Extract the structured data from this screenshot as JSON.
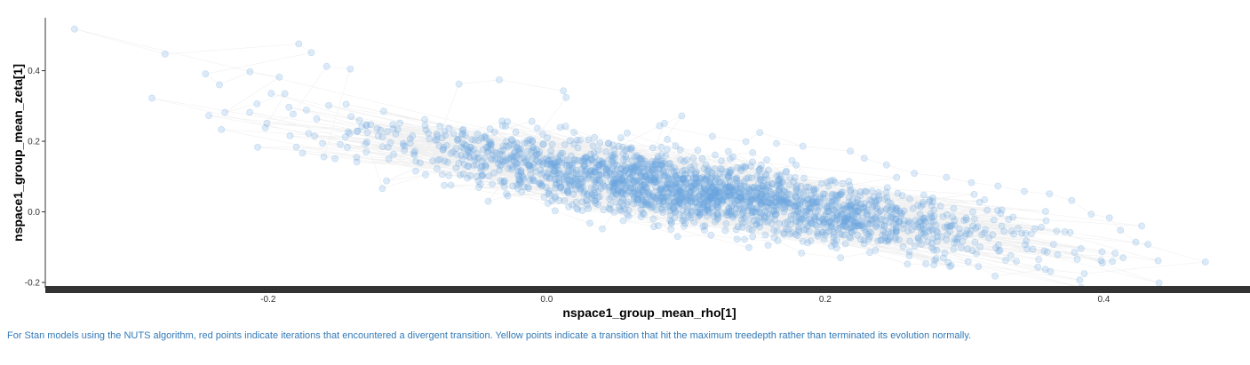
{
  "chart_data": {
    "type": "scatter",
    "xlabel": "nspace1_group_mean_rho[1]",
    "ylabel": "nspace1_group_mean_zeta[1]",
    "xlim": [
      -0.36,
      0.505
    ],
    "ylim": [
      -0.21,
      0.55
    ],
    "x_ticks": [
      {
        "value": -0.2,
        "label": "-0.2"
      },
      {
        "value": 0.0,
        "label": "0.0"
      },
      {
        "value": 0.2,
        "label": "0.2"
      },
      {
        "value": 0.4,
        "label": "0.4"
      }
    ],
    "y_ticks": [
      {
        "value": 0.4,
        "label": "0.4"
      },
      {
        "value": 0.2,
        "label": "0.2"
      },
      {
        "value": 0.0,
        "label": "0.0"
      },
      {
        "value": -0.2,
        "label": "-0.2"
      }
    ],
    "grid": false,
    "point_color": "#6aa6e0",
    "path_color": "#e3e3e3",
    "axis_bar_color": "#333333",
    "trend": {
      "slope": -0.62,
      "intercept": 0.128
    },
    "points": [
      {
        "x": -0.339,
        "y": 0.518
      },
      {
        "x": -0.274,
        "y": 0.447
      },
      {
        "x": -0.178,
        "y": 0.476
      },
      {
        "x": -0.169,
        "y": 0.451
      },
      {
        "x": -0.245,
        "y": 0.391
      },
      {
        "x": -0.235,
        "y": 0.36
      },
      {
        "x": -0.213,
        "y": 0.397
      },
      {
        "x": -0.192,
        "y": 0.382
      },
      {
        "x": -0.231,
        "y": 0.282
      },
      {
        "x": -0.208,
        "y": 0.306
      },
      {
        "x": -0.188,
        "y": 0.335
      },
      {
        "x": -0.202,
        "y": 0.238
      },
      {
        "x": -0.182,
        "y": 0.277
      },
      {
        "x": -0.158,
        "y": 0.412
      },
      {
        "x": -0.141,
        "y": 0.405
      },
      {
        "x": -0.16,
        "y": 0.156
      },
      {
        "x": -0.152,
        "y": 0.151
      },
      {
        "x": -0.129,
        "y": 0.198
      },
      {
        "x": -0.118,
        "y": 0.066
      },
      {
        "x": -0.087,
        "y": 0.105
      },
      {
        "x": -0.063,
        "y": 0.362
      },
      {
        "x": -0.034,
        "y": 0.374
      },
      {
        "x": 0.012,
        "y": 0.343
      },
      {
        "x": 0.014,
        "y": 0.324
      },
      {
        "x": -0.042,
        "y": 0.03
      },
      {
        "x": -0.018,
        "y": 0.056
      },
      {
        "x": 0.006,
        "y": 0.003
      },
      {
        "x": 0.031,
        "y": -0.032
      },
      {
        "x": 0.04,
        "y": -0.048
      },
      {
        "x": 0.097,
        "y": 0.272
      },
      {
        "x": 0.081,
        "y": 0.244
      },
      {
        "x": 0.119,
        "y": 0.214
      },
      {
        "x": 0.143,
        "y": 0.199
      },
      {
        "x": 0.153,
        "y": 0.225
      },
      {
        "x": 0.184,
        "y": 0.186
      },
      {
        "x": 0.165,
        "y": 0.194
      },
      {
        "x": 0.218,
        "y": 0.172
      },
      {
        "x": 0.228,
        "y": 0.152
      },
      {
        "x": 0.244,
        "y": 0.133
      },
      {
        "x": 0.264,
        "y": 0.109
      },
      {
        "x": 0.287,
        "y": 0.098
      },
      {
        "x": 0.305,
        "y": 0.083
      },
      {
        "x": 0.324,
        "y": 0.073
      },
      {
        "x": 0.343,
        "y": 0.058
      },
      {
        "x": 0.361,
        "y": 0.051
      },
      {
        "x": 0.377,
        "y": 0.032
      },
      {
        "x": 0.391,
        "y": -0.007
      },
      {
        "x": 0.404,
        "y": -0.017
      },
      {
        "x": 0.412,
        "y": -0.052
      },
      {
        "x": 0.423,
        "y": -0.086
      },
      {
        "x": 0.473,
        "y": -0.142
      },
      {
        "x": 0.386,
        "y": -0.175
      },
      {
        "x": 0.358,
        "y": -0.163
      },
      {
        "x": 0.322,
        "y": -0.182
      },
      {
        "x": 0.31,
        "y": -0.155
      },
      {
        "x": 0.278,
        "y": -0.15
      },
      {
        "x": 0.259,
        "y": -0.148
      },
      {
        "x": 0.232,
        "y": -0.115
      },
      {
        "x": 0.211,
        "y": -0.13
      },
      {
        "x": 0.183,
        "y": -0.117
      },
      {
        "x": 0.166,
        "y": -0.082
      },
      {
        "x": 0.142,
        "y": -0.078
      },
      {
        "x": 0.118,
        "y": -0.066
      },
      {
        "x": 0.094,
        "y": -0.07
      },
      {
        "x": 0.077,
        "y": -0.042
      },
      {
        "x": 0.055,
        "y": -0.025
      },
      {
        "x": 0.414,
        "y": -0.13
      },
      {
        "x": 0.399,
        "y": -0.145
      },
      {
        "x": 0.379,
        "y": -0.115
      },
      {
        "x": 0.349,
        "y": -0.106
      }
    ],
    "caption": "For Stan models using the NUTS algorithm, red points indicate iterations that encountered a divergent transition. Yellow points indicate a transition that hit the maximum treedepth rather than terminated its evolution normally."
  }
}
